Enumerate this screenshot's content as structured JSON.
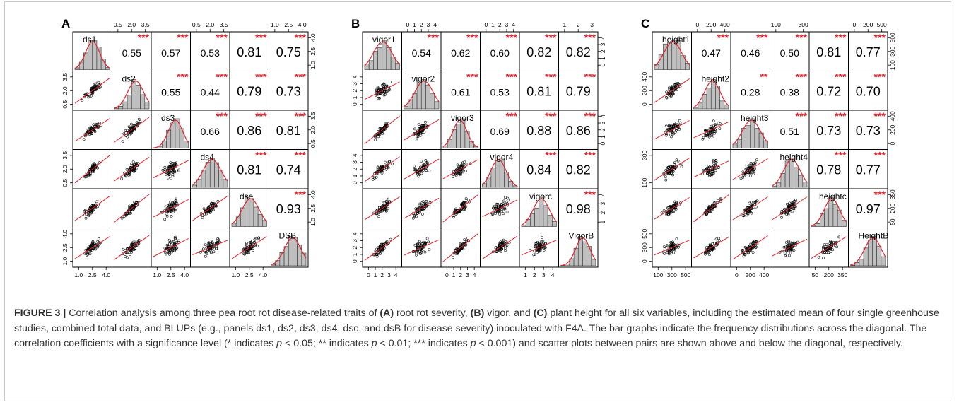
{
  "figure": {
    "caption_label": "FIGURE 3 |",
    "caption_parts": [
      {
        "t": "Correlation analysis among three pea root rot disease-related traits of ",
        "b": false
      },
      {
        "t": "(A)",
        "b": true
      },
      {
        "t": " root rot severity, ",
        "b": false
      },
      {
        "t": "(B)",
        "b": true
      },
      {
        "t": " vigor, and ",
        "b": false
      },
      {
        "t": "(C)",
        "b": true
      },
      {
        "t": " plant height for all six variables, including the estimated mean of four single greenhouse studies, combined total data, and BLUPs (e.g., panels ds1, ds2, ds3, ds4, dsc, and dsB for disease severity) inoculated with F4A. The bar graphs indicate the frequency distributions across the diagonal. The correlation coefficients with a significance level (* indicates ",
        "b": false
      },
      {
        "t": "p",
        "i": true
      },
      {
        "t": " < 0.05; ** indicates ",
        "b": false
      },
      {
        "t": "p",
        "i": true
      },
      {
        "t": " < 0.01; *** indicates ",
        "b": false
      },
      {
        "t": "p",
        "i": true
      },
      {
        "t": " < 0.001) and scatter plots between pairs are shown above and below the diagonal, respectively.",
        "b": false
      }
    ]
  },
  "chart_data": [
    {
      "type": "scatter-matrix",
      "panel_label": "A",
      "variables": [
        "ds1",
        "ds2",
        "ds3",
        "ds4",
        "dse",
        "DSB"
      ],
      "correlations": [
        {
          "pair": [
            "ds1",
            "ds2"
          ],
          "r": "0.55",
          "sig": "***"
        },
        {
          "pair": [
            "ds1",
            "ds3"
          ],
          "r": "0.57",
          "sig": "***"
        },
        {
          "pair": [
            "ds1",
            "ds4"
          ],
          "r": "0.53",
          "sig": "***"
        },
        {
          "pair": [
            "ds1",
            "dse"
          ],
          "r": "0.81",
          "sig": "***"
        },
        {
          "pair": [
            "ds1",
            "DSB"
          ],
          "r": "0.75",
          "sig": "***"
        },
        {
          "pair": [
            "ds2",
            "ds3"
          ],
          "r": "0.55",
          "sig": "***"
        },
        {
          "pair": [
            "ds2",
            "ds4"
          ],
          "r": "0.44",
          "sig": "***"
        },
        {
          "pair": [
            "ds2",
            "dse"
          ],
          "r": "0.79",
          "sig": "***"
        },
        {
          "pair": [
            "ds2",
            "DSB"
          ],
          "r": "0.73",
          "sig": "***"
        },
        {
          "pair": [
            "ds3",
            "ds4"
          ],
          "r": "0.66",
          "sig": "***"
        },
        {
          "pair": [
            "ds3",
            "dse"
          ],
          "r": "0.86",
          "sig": "***"
        },
        {
          "pair": [
            "ds3",
            "DSB"
          ],
          "r": "0.81",
          "sig": "***"
        },
        {
          "pair": [
            "ds4",
            "dse"
          ],
          "r": "0.81",
          "sig": "***"
        },
        {
          "pair": [
            "ds4",
            "DSB"
          ],
          "r": "0.74",
          "sig": "***"
        },
        {
          "pair": [
            "dse",
            "DSB"
          ],
          "r": "0.93",
          "sig": "***"
        }
      ],
      "top_ticks": [
        [
          "0.5",
          "2.0",
          "3.5"
        ],
        [
          "0.5",
          "2.0",
          "3.5"
        ],
        [
          "1.0",
          "2.5",
          "4.0"
        ]
      ],
      "right_ticks": [
        [
          "1.0",
          "2.5",
          "4.0"
        ],
        [
          "0.5",
          "2.0",
          "3.5"
        ],
        [
          "1.0",
          "2.5",
          "4.0"
        ]
      ],
      "left_ticks": [
        [
          "0.5",
          "2.0",
          "3.5"
        ],
        [
          "0.5",
          "2.0",
          "3.5"
        ],
        [
          "1.0",
          "2.5",
          "4.0"
        ]
      ],
      "bottom_ticks": [
        [
          "1.0",
          "2.5",
          "4.0"
        ],
        [
          "1.0",
          "2.5",
          "4.0"
        ],
        [
          "1.0",
          "2.5",
          "4.0"
        ]
      ]
    },
    {
      "type": "scatter-matrix",
      "panel_label": "B",
      "variables": [
        "vigor1",
        "vigor2",
        "vigor3",
        "vigor4",
        "vigorc",
        "VigorB"
      ],
      "correlations": [
        {
          "pair": [
            "vigor1",
            "vigor2"
          ],
          "r": "0.54",
          "sig": "***"
        },
        {
          "pair": [
            "vigor1",
            "vigor3"
          ],
          "r": "0.62",
          "sig": "***"
        },
        {
          "pair": [
            "vigor1",
            "vigor4"
          ],
          "r": "0.60",
          "sig": "***"
        },
        {
          "pair": [
            "vigor1",
            "vigorc"
          ],
          "r": "0.82",
          "sig": "***"
        },
        {
          "pair": [
            "vigor1",
            "VigorB"
          ],
          "r": "0.82",
          "sig": "***"
        },
        {
          "pair": [
            "vigor2",
            "vigor3"
          ],
          "r": "0.61",
          "sig": "***"
        },
        {
          "pair": [
            "vigor2",
            "vigor4"
          ],
          "r": "0.53",
          "sig": "***"
        },
        {
          "pair": [
            "vigor2",
            "vigorc"
          ],
          "r": "0.81",
          "sig": "***"
        },
        {
          "pair": [
            "vigor2",
            "VigorB"
          ],
          "r": "0.79",
          "sig": "***"
        },
        {
          "pair": [
            "vigor3",
            "vigor4"
          ],
          "r": "0.69",
          "sig": "***"
        },
        {
          "pair": [
            "vigor3",
            "vigorc"
          ],
          "r": "0.88",
          "sig": "***"
        },
        {
          "pair": [
            "vigor3",
            "VigorB"
          ],
          "r": "0.86",
          "sig": "***"
        },
        {
          "pair": [
            "vigor4",
            "vigorc"
          ],
          "r": "0.84",
          "sig": "***"
        },
        {
          "pair": [
            "vigor4",
            "VigorB"
          ],
          "r": "0.82",
          "sig": "***"
        },
        {
          "pair": [
            "vigorc",
            "VigorB"
          ],
          "r": "0.98",
          "sig": "***"
        }
      ],
      "top_ticks": [
        [
          "0",
          "1",
          "2",
          "3",
          "4"
        ],
        [
          "0",
          "1",
          "2",
          "3",
          "4"
        ],
        [
          "1",
          "2",
          "3"
        ]
      ],
      "right_ticks": [
        [
          "0",
          "1",
          "2",
          "3",
          "4"
        ],
        [
          "0",
          "1",
          "2",
          "3",
          "4"
        ],
        [
          "1",
          "2",
          "3",
          "4"
        ]
      ],
      "left_ticks": [
        [
          "0",
          "1",
          "2",
          "3",
          "4"
        ],
        [
          "0",
          "1",
          "2",
          "3",
          "4"
        ],
        [
          "0",
          "1",
          "2",
          "3",
          "4"
        ]
      ],
      "bottom_ticks": [
        [
          "0",
          "1",
          "2",
          "3",
          "4"
        ],
        [
          "0",
          "1",
          "2",
          "3",
          "4"
        ],
        [
          "1",
          "2",
          "3",
          "4"
        ]
      ]
    },
    {
      "type": "scatter-matrix",
      "panel_label": "C",
      "variables": [
        "height1",
        "height2",
        "height3",
        "height4",
        "heightc",
        "HeightB"
      ],
      "correlations": [
        {
          "pair": [
            "height1",
            "height2"
          ],
          "r": "0.47",
          "sig": "***"
        },
        {
          "pair": [
            "height1",
            "height3"
          ],
          "r": "0.46",
          "sig": "***"
        },
        {
          "pair": [
            "height1",
            "height4"
          ],
          "r": "0.50",
          "sig": "***"
        },
        {
          "pair": [
            "height1",
            "heightc"
          ],
          "r": "0.81",
          "sig": "***"
        },
        {
          "pair": [
            "height1",
            "HeightB"
          ],
          "r": "0.77",
          "sig": "***"
        },
        {
          "pair": [
            "height2",
            "height3"
          ],
          "r": "0.28",
          "sig": "**"
        },
        {
          "pair": [
            "height2",
            "height4"
          ],
          "r": "0.38",
          "sig": "***"
        },
        {
          "pair": [
            "height2",
            "heightc"
          ],
          "r": "0.72",
          "sig": "***"
        },
        {
          "pair": [
            "height2",
            "HeightB"
          ],
          "r": "0.70",
          "sig": "***"
        },
        {
          "pair": [
            "height3",
            "height4"
          ],
          "r": "0.51",
          "sig": "***"
        },
        {
          "pair": [
            "height3",
            "heightc"
          ],
          "r": "0.73",
          "sig": "***"
        },
        {
          "pair": [
            "height3",
            "HeightB"
          ],
          "r": "0.73",
          "sig": "***"
        },
        {
          "pair": [
            "height4",
            "heightc"
          ],
          "r": "0.78",
          "sig": "***"
        },
        {
          "pair": [
            "height4",
            "HeightB"
          ],
          "r": "0.77",
          "sig": "***"
        },
        {
          "pair": [
            "heightc",
            "HeightB"
          ],
          "r": "0.97",
          "sig": "***"
        }
      ],
      "top_ticks": [
        [
          "0",
          "200",
          "400"
        ],
        [
          "100",
          "300"
        ],
        [
          "0",
          "200",
          "500"
        ]
      ],
      "right_ticks": [
        [
          "100",
          "300",
          "500"
        ],
        [
          "0",
          "200",
          "400"
        ],
        [
          "50",
          "200",
          "350"
        ]
      ],
      "left_ticks": [
        [
          "0",
          "200",
          "400"
        ],
        [
          "100",
          "300"
        ],
        [
          "0",
          "300",
          "500"
        ]
      ],
      "bottom_ticks": [
        [
          "100",
          "300",
          "500"
        ],
        [
          "0",
          "200",
          "400"
        ],
        [
          "50",
          "200",
          "350"
        ]
      ]
    }
  ]
}
